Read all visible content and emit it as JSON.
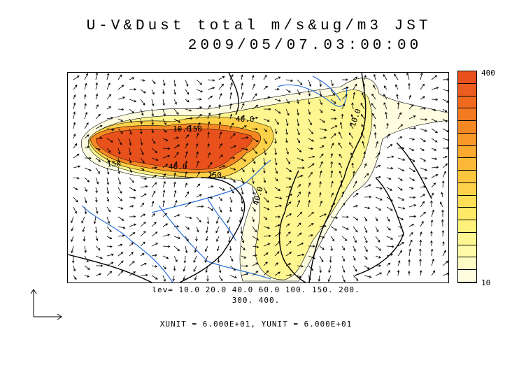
{
  "title": "U-V&Dust total m/s&ug/m3 JST",
  "datetime": "2009/05/07.03:00:00",
  "contour_levels_line1": "lev= 10.0 20.0 40.0 60.0 100. 150. 200.",
  "contour_levels_line2": "300. 400.",
  "units_line": "XUNIT = 6.000E+01, YUNIT = 6.000E+01",
  "colorbar": {
    "max_label": "400",
    "min_label": "10",
    "colors": [
      "#e8501c",
      "#ec5c1e",
      "#f06a1e",
      "#f37a20",
      "#f68824",
      "#f89828",
      "#faa82e",
      "#fbb836",
      "#fcc63e",
      "#fdd248",
      "#fdde56",
      "#feea66",
      "#fef27a",
      "#fef690",
      "#fefaa8",
      "#fefcc4",
      "#fffde0"
    ]
  },
  "contour_labels": [
    "150",
    "150",
    "40.0",
    "40.0",
    "40.0",
    "10.0",
    "10.0",
    "150"
  ],
  "colors": {
    "coast": "#000000",
    "river": "#2a6fdb",
    "border": "#000000"
  }
}
